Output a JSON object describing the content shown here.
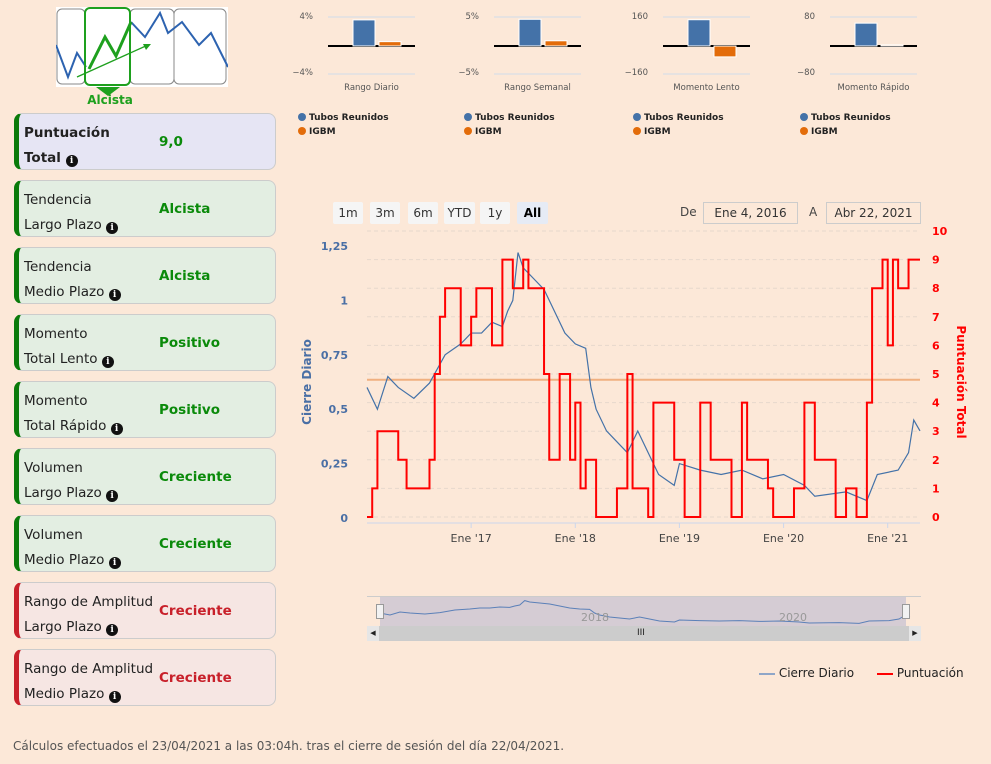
{
  "logo": {
    "label": "Alcista"
  },
  "cards": [
    {
      "line1": "Puntuación",
      "line2": "Total",
      "value": "9,0",
      "style": "lav",
      "bold": true
    },
    {
      "line1": "Tendencia",
      "line2": "Largo Plazo",
      "value": "Alcista",
      "style": "grn"
    },
    {
      "line1": "Tendencia",
      "line2": "Medio Plazo",
      "value": "Alcista",
      "style": "grn"
    },
    {
      "line1": "Momento",
      "line2": "Total Lento",
      "value": "Positivo",
      "style": "grn"
    },
    {
      "line1": "Momento",
      "line2": "Total Rápido",
      "value": "Positivo",
      "style": "grn"
    },
    {
      "line1": "Volumen",
      "line2": "Largo Plazo",
      "value": "Creciente",
      "style": "grn"
    },
    {
      "line1": "Volumen",
      "line2": "Medio Plazo",
      "value": "Creciente",
      "style": "grn"
    },
    {
      "line1": "Rango de Amplitud",
      "line2": "Largo Plazo",
      "value": "Creciente",
      "style": "red"
    },
    {
      "line1": "Rango de Amplitud",
      "line2": "Medio Plazo",
      "value": "Creciente",
      "style": "red"
    }
  ],
  "colors": {
    "stock": "#4472a8",
    "index": "#e36c0a",
    "score": "#ff0000",
    "ref": "#f0b080"
  },
  "chart_data": [
    {
      "type": "bar",
      "title": "Rango Diario",
      "ymax_label": "4%",
      "ymin_label": "−4%",
      "ylim": [
        -4,
        4
      ],
      "series": [
        {
          "name": "Tubos Reunidos",
          "values": [
            3.6
          ]
        },
        {
          "name": "IGBM",
          "values": [
            0.6
          ]
        }
      ]
    },
    {
      "type": "bar",
      "title": "Rango Semanal",
      "ymax_label": "5%",
      "ymin_label": "−5%",
      "ylim": [
        -5,
        5
      ],
      "series": [
        {
          "name": "Tubos Reunidos",
          "values": [
            4.6
          ]
        },
        {
          "name": "IGBM",
          "values": [
            0.9
          ]
        }
      ]
    },
    {
      "type": "bar",
      "title": "Momento Lento",
      "ymax_label": "160",
      "ymin_label": "−160",
      "ylim": [
        -160,
        160
      ],
      "series": [
        {
          "name": "Tubos Reunidos",
          "values": [
            145
          ]
        },
        {
          "name": "IGBM",
          "values": [
            -60
          ]
        }
      ]
    },
    {
      "type": "bar",
      "title": "Momento Rápido",
      "ymax_label": "80",
      "ymin_label": "−80",
      "ylim": [
        -80,
        80
      ],
      "series": [
        {
          "name": "Tubos Reunidos",
          "values": [
            63
          ]
        },
        {
          "name": "IGBM",
          "values": [
            3
          ]
        }
      ]
    },
    {
      "type": "line",
      "ylabel": "Cierre Diario",
      "y2label": "Puntuación Total",
      "yticks": [
        "0",
        "0,25",
        "0,5",
        "0,75",
        "1",
        "1,25"
      ],
      "ylim": [
        0,
        1.3
      ],
      "y2ticks": [
        "0",
        "1",
        "2",
        "3",
        "4",
        "5",
        "6",
        "7",
        "8",
        "9",
        "10"
      ],
      "y2lim": [
        0,
        10
      ],
      "xticks": [
        "Ene '17",
        "Ene '18",
        "Ene '19",
        "Ene '20",
        "Ene '21"
      ],
      "xlim": [
        2016.0,
        2021.31
      ],
      "reference_score": 4.8,
      "series": [
        {
          "name": "Cierre Diario",
          "points": [
            [
              2016.0,
              0.6
            ],
            [
              2016.1,
              0.5
            ],
            [
              2016.2,
              0.65
            ],
            [
              2016.3,
              0.6
            ],
            [
              2016.45,
              0.55
            ],
            [
              2016.6,
              0.62
            ],
            [
              2016.75,
              0.75
            ],
            [
              2016.9,
              0.8
            ],
            [
              2017.0,
              0.85
            ],
            [
              2017.1,
              0.85
            ],
            [
              2017.2,
              0.9
            ],
            [
              2017.3,
              0.88
            ],
            [
              2017.35,
              0.95
            ],
            [
              2017.4,
              1.0
            ],
            [
              2017.45,
              1.22
            ],
            [
              2017.5,
              1.15
            ],
            [
              2017.6,
              1.1
            ],
            [
              2017.7,
              1.05
            ],
            [
              2017.8,
              0.95
            ],
            [
              2017.9,
              0.85
            ],
            [
              2018.0,
              0.8
            ],
            [
              2018.1,
              0.78
            ],
            [
              2018.15,
              0.6
            ],
            [
              2018.2,
              0.5
            ],
            [
              2018.3,
              0.4
            ],
            [
              2018.4,
              0.35
            ],
            [
              2018.5,
              0.3
            ],
            [
              2018.6,
              0.4
            ],
            [
              2018.7,
              0.3
            ],
            [
              2018.8,
              0.2
            ],
            [
              2018.95,
              0.15
            ],
            [
              2019.0,
              0.25
            ],
            [
              2019.2,
              0.22
            ],
            [
              2019.4,
              0.2
            ],
            [
              2019.6,
              0.22
            ],
            [
              2019.8,
              0.18
            ],
            [
              2020.0,
              0.2
            ],
            [
              2020.2,
              0.15
            ],
            [
              2020.3,
              0.1
            ],
            [
              2020.6,
              0.12
            ],
            [
              2020.8,
              0.08
            ],
            [
              2020.9,
              0.2
            ],
            [
              2021.1,
              0.22
            ],
            [
              2021.2,
              0.3
            ],
            [
              2021.25,
              0.45
            ],
            [
              2021.31,
              0.4
            ]
          ]
        },
        {
          "name": "Puntuación",
          "step": true,
          "points": [
            [
              2016.0,
              0
            ],
            [
              2016.05,
              1
            ],
            [
              2016.1,
              3
            ],
            [
              2016.3,
              2
            ],
            [
              2016.38,
              1
            ],
            [
              2016.6,
              2
            ],
            [
              2016.65,
              5
            ],
            [
              2016.7,
              7
            ],
            [
              2016.75,
              8
            ],
            [
              2016.9,
              6
            ],
            [
              2017.0,
              7
            ],
            [
              2017.05,
              8
            ],
            [
              2017.2,
              6
            ],
            [
              2017.3,
              9
            ],
            [
              2017.4,
              8
            ],
            [
              2017.5,
              9
            ],
            [
              2017.55,
              8
            ],
            [
              2017.7,
              5
            ],
            [
              2017.75,
              2
            ],
            [
              2017.85,
              5
            ],
            [
              2017.95,
              2
            ],
            [
              2018.0,
              4
            ],
            [
              2018.05,
              1
            ],
            [
              2018.1,
              2
            ],
            [
              2018.2,
              0
            ],
            [
              2018.4,
              1
            ],
            [
              2018.5,
              5
            ],
            [
              2018.55,
              1
            ],
            [
              2018.7,
              0
            ],
            [
              2018.75,
              4
            ],
            [
              2018.95,
              2
            ],
            [
              2019.05,
              0
            ],
            [
              2019.2,
              4
            ],
            [
              2019.3,
              2
            ],
            [
              2019.5,
              0
            ],
            [
              2019.6,
              4
            ],
            [
              2019.65,
              2
            ],
            [
              2019.85,
              1
            ],
            [
              2019.9,
              0
            ],
            [
              2020.1,
              1
            ],
            [
              2020.2,
              4
            ],
            [
              2020.3,
              2
            ],
            [
              2020.5,
              0
            ],
            [
              2020.6,
              1
            ],
            [
              2020.7,
              0
            ],
            [
              2020.8,
              4
            ],
            [
              2020.85,
              8
            ],
            [
              2020.95,
              9
            ],
            [
              2021.0,
              6
            ],
            [
              2021.05,
              9
            ],
            [
              2021.1,
              8
            ],
            [
              2021.2,
              9
            ],
            [
              2021.31,
              9
            ]
          ]
        }
      ]
    }
  ],
  "range": {
    "buttons": [
      "1m",
      "3m",
      "6m",
      "YTD",
      "1y",
      "All"
    ],
    "selected": "All",
    "from_label": "De",
    "from": "Ene 4, 2016",
    "to_label": "A",
    "to": "Abr 22, 2021"
  },
  "navigator": {
    "labels": [
      "2018",
      "2020"
    ]
  },
  "legend": {
    "stock": "Cierre Diario",
    "score": "Puntuación"
  },
  "minilegend": {
    "stock": "Tubos Reunidos",
    "index": "IGBM"
  },
  "footer": "Cálculos efectuados el 23/04/2021 a las 03:04h. tras el cierre de sesión del día 22/04/2021."
}
